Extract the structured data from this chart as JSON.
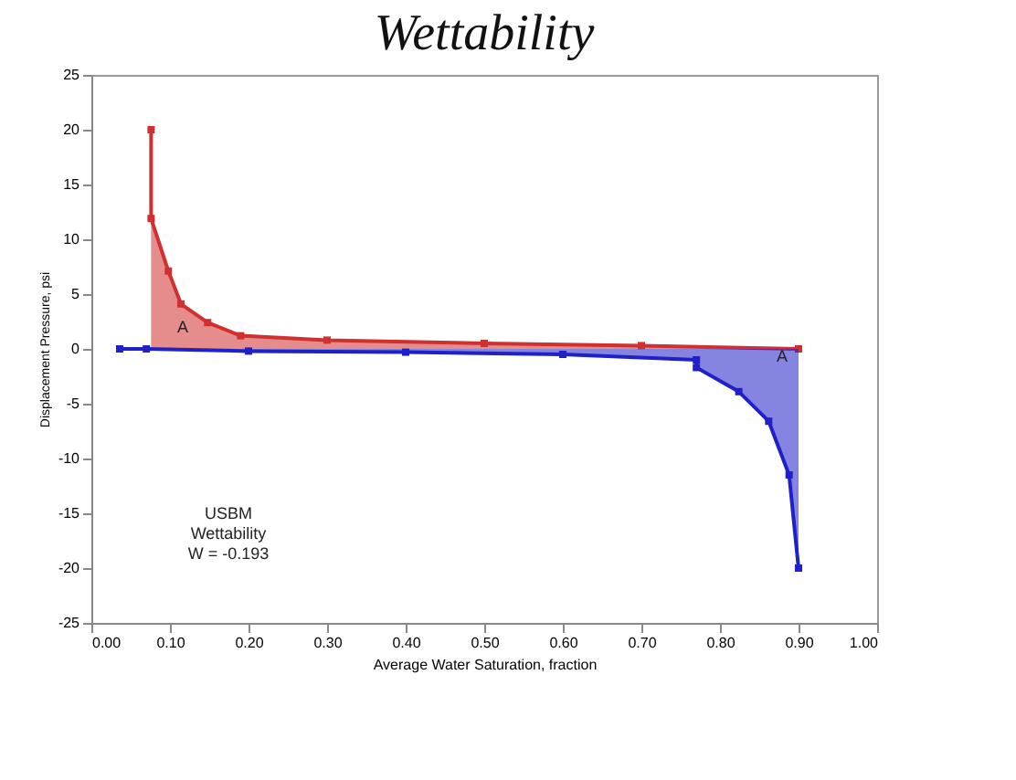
{
  "chart_data": {
    "type": "area",
    "title": "Wettability",
    "xlabel": "Average Water Saturation, fraction",
    "ylabel": "Displacement Pressure, psi",
    "xlim": [
      0,
      1
    ],
    "xticks": [
      {
        "value": 0,
        "label": "0.00"
      },
      {
        "value": 0.1,
        "label": "0.10"
      },
      {
        "value": 0.2,
        "label": "0.20"
      },
      {
        "value": 0.3,
        "label": "0.30"
      },
      {
        "value": 0.4,
        "label": "0.40"
      },
      {
        "value": 0.5,
        "label": "0.50"
      },
      {
        "value": 0.6,
        "label": "0.60"
      },
      {
        "value": 0.7,
        "label": "0.70"
      },
      {
        "value": 0.8,
        "label": "0.80"
      },
      {
        "value": 0.9,
        "label": "0.90"
      },
      {
        "value": 1,
        "label": "1.00"
      }
    ],
    "ylim": [
      -25,
      25
    ],
    "yticks": [
      -25,
      -20,
      -15,
      -10,
      -5,
      0,
      5,
      10,
      15,
      20,
      25
    ],
    "marker": "square",
    "grid": false,
    "series": [
      {
        "color": "#d03030",
        "x": [
          0.076,
          0.076,
          0.098,
          0.114,
          0.148,
          0.19,
          0.3,
          0.5,
          0.7,
          0.9
        ],
        "values": [
          20,
          11.9,
          7.1,
          4.1,
          2.4,
          1.2,
          0.8,
          0.5,
          0.3,
          0
        ]
      },
      {
        "color": "#2020c8",
        "x": [
          0.036,
          0.07,
          0.2,
          0.4,
          0.6,
          0.77,
          0.77,
          0.824,
          0.862,
          0.888,
          0.9
        ],
        "values": [
          0,
          0,
          -0.2,
          -0.3,
          -0.5,
          -1.0,
          -1.7,
          -3.9,
          -6.6,
          -11.5,
          -20
        ]
      }
    ],
    "annotations": [
      "A",
      "A",
      "USBM",
      "Wettability",
      "W = -0.193"
    ]
  }
}
